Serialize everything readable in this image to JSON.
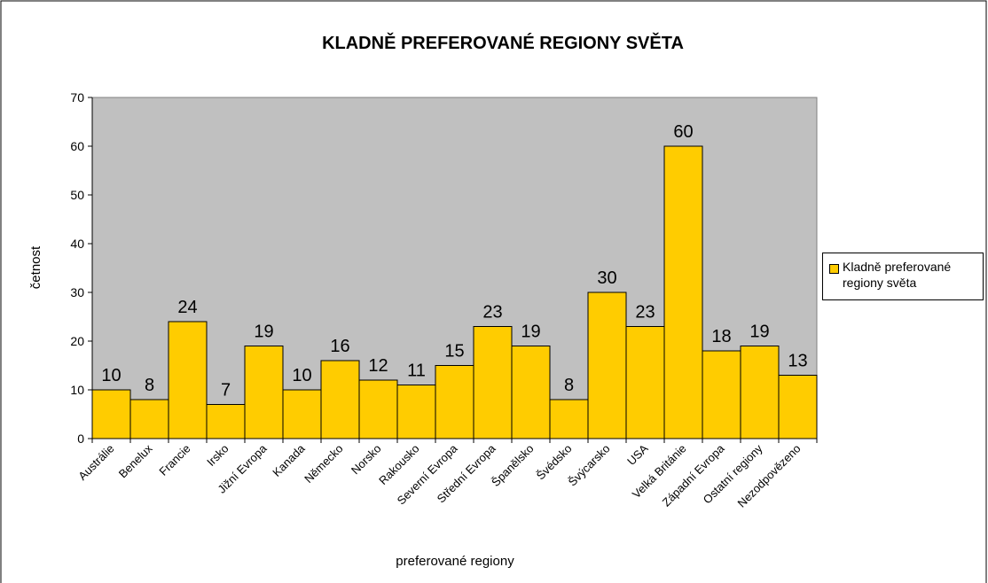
{
  "chart_data": {
    "type": "bar",
    "title": "KLADNĚ PREFEROVANÉ REGIONY SVĚTA",
    "x_label": "preferované regiony",
    "y_label": "četnost",
    "categories": [
      "Austrálie",
      "Benelux",
      "Francie",
      "Irsko",
      "Jižní Evropa",
      "Kanada",
      "Německo",
      "Norsko",
      "Rakousko",
      "Severní Evropa",
      "Střední Evropa",
      "Španělsko",
      "Švédsko",
      "Švýcarsko",
      "USA",
      "Velká Británie",
      "Západní Evropa",
      "Ostatní regiony",
      "Nezodpovězeno"
    ],
    "series": [
      {
        "name": "Kladně preferované regiony světa",
        "color": "#ffcc00",
        "values": [
          10,
          8,
          24,
          7,
          19,
          10,
          16,
          12,
          11,
          15,
          23,
          19,
          8,
          30,
          23,
          60,
          18,
          19,
          13
        ]
      }
    ],
    "ylim": [
      0,
      70
    ],
    "yticks": [
      0,
      10,
      20,
      30,
      40,
      50,
      60,
      70
    ],
    "legend": "right",
    "plot_background": "#c0c0c0"
  }
}
